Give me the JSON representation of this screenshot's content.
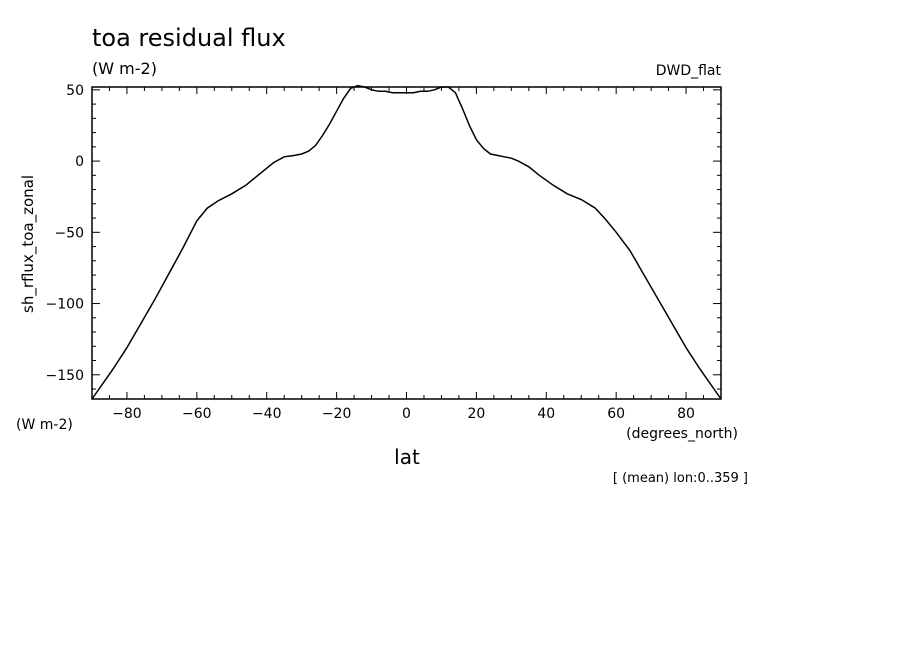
{
  "chart_data": {
    "type": "line",
    "title": "toa residual flux",
    "units": "(W m-2)",
    "source_label": "DWD_flat",
    "ylabel": "sh_rflux_toa_zonal",
    "ylabel_units": "(W m-2)",
    "xlabel": "lat",
    "xlabel_units": "(degrees_north)",
    "footnote": "[ (mean) lon:0..359 ]",
    "xlim": [
      -90,
      90
    ],
    "ylim": [
      -167,
      52
    ],
    "xticks": [
      -80,
      -60,
      -40,
      -20,
      0,
      20,
      40,
      60,
      80
    ],
    "xtick_labels": [
      "−80",
      "−60",
      "−40",
      "−20",
      "0",
      "20",
      "40",
      "60",
      "80"
    ],
    "yticks": [
      -150,
      -100,
      -50,
      0,
      50
    ],
    "ytick_labels": [
      "−150",
      "−100",
      "−50",
      "0",
      "50"
    ],
    "grid": false,
    "series": [
      {
        "x": [
          -90,
          -84,
          -80,
          -76,
          -72,
          -68,
          -64,
          -60,
          -57,
          -54,
          -50,
          -46,
          -42,
          -38,
          -35,
          -32,
          -30,
          -28,
          -26,
          -24,
          -22,
          -20,
          -18,
          -16,
          -14,
          -12,
          -10,
          -8,
          -6,
          -4,
          -2,
          0,
          2,
          4,
          6,
          8,
          10,
          12,
          14,
          16,
          18,
          20,
          22,
          24,
          26,
          28,
          30,
          32,
          35,
          38,
          42,
          46,
          50,
          54,
          57,
          60,
          64,
          68,
          72,
          76,
          80,
          84,
          88,
          90
        ],
        "y": [
          -167,
          -146,
          -131,
          -114,
          -97,
          -79,
          -61,
          -42,
          -33,
          -28,
          -23,
          -17,
          -9,
          -1,
          3,
          4,
          5,
          7,
          11,
          18,
          26,
          35,
          44,
          51,
          53,
          52,
          50,
          49,
          49,
          48,
          48,
          48,
          48,
          49,
          49,
          50,
          52,
          52,
          48,
          37,
          25,
          15,
          9,
          5,
          4,
          3,
          2,
          0,
          -4,
          -10,
          -17,
          -23,
          -27,
          -33,
          -41,
          -50,
          -63,
          -80,
          -97,
          -114,
          -131,
          -146,
          -160,
          -167
        ]
      }
    ]
  }
}
